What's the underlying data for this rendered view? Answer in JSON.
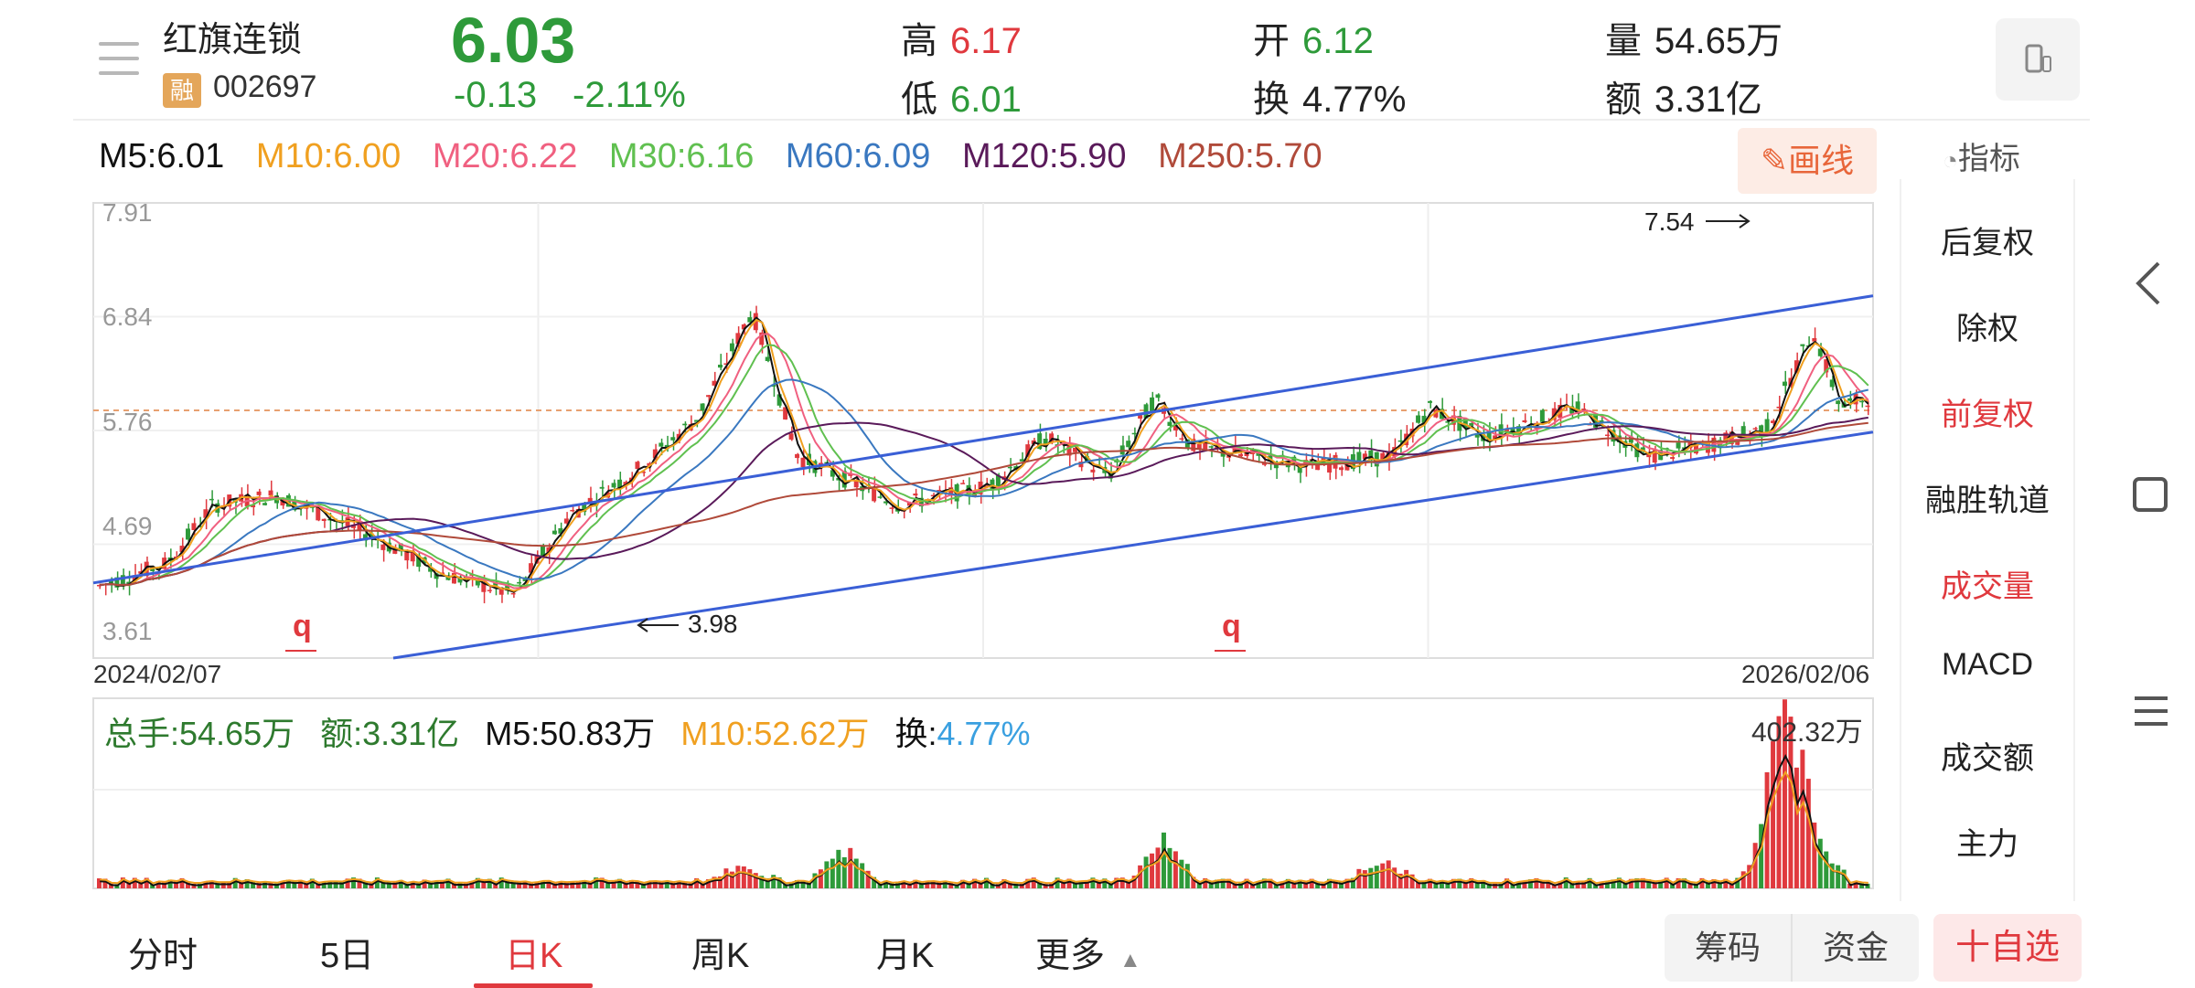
{
  "header": {
    "stock_name": "红旗连锁",
    "badge": "融",
    "stock_code": "002697",
    "price": "6.03",
    "change": "-0.13",
    "change_pct": "-2.11%",
    "high_label": "高",
    "high_value": "6.17",
    "low_label": "低",
    "low_value": "6.01",
    "open_label": "开",
    "open_value": "6.12",
    "turnover_label": "换",
    "turnover_value": "4.77%",
    "volume_label": "量",
    "volume_value": "54.65万",
    "amount_label": "额",
    "amount_value": "3.31亿"
  },
  "ma_legend": [
    {
      "label": "M5:6.01",
      "color": "#111111"
    },
    {
      "label": "M10:6.00",
      "color": "#f0a020"
    },
    {
      "label": "M20:6.22",
      "color": "#f06080"
    },
    {
      "label": "M30:6.16",
      "color": "#60c050"
    },
    {
      "label": "M60:6.09",
      "color": "#3a78c0"
    },
    {
      "label": "M120:5.90",
      "color": "#5a1a5a"
    },
    {
      "label": "M250:5.70",
      "color": "#b04a3a"
    }
  ],
  "toolbar": {
    "draw_label": "画线",
    "indicator_label": "指标"
  },
  "side_menu": [
    {
      "label": "后复权",
      "active": false
    },
    {
      "label": "除权",
      "active": false
    },
    {
      "label": "前复权",
      "active": true
    },
    {
      "label": "融胜轨道",
      "active": false
    },
    {
      "label": "成交量",
      "active": true
    },
    {
      "label": "MACD",
      "active": false
    },
    {
      "label": "成交额",
      "active": false
    },
    {
      "label": "主力",
      "active": false
    }
  ],
  "chart": {
    "y_ticks": [
      "7.91",
      "6.84",
      "5.76",
      "4.69",
      "3.61"
    ],
    "annotation_high": "7.54",
    "annotation_low": "3.98",
    "marker": "q",
    "date_start": "2024/02/07",
    "date_end": "2026/02/06",
    "ref_price_line": "5.76"
  },
  "volume": {
    "total_label": "总手:54.65万",
    "amount_label": "额:3.31亿",
    "m5_label": "M5:50.83万",
    "m10_label": "M10:52.62万",
    "turnover_label": "换:",
    "turnover_value": "4.77%",
    "max_label": "402.32万"
  },
  "bottom_tabs": [
    "分时",
    "5日",
    "日K",
    "周K",
    "月K",
    "更多"
  ],
  "active_tab": "日K",
  "buttons": {
    "chips": "筹码",
    "funds": "资金",
    "watch": "十自选"
  },
  "colors": {
    "up": "#e0393e",
    "down": "#2e9a3a",
    "channel": "#3a5fd6"
  }
}
